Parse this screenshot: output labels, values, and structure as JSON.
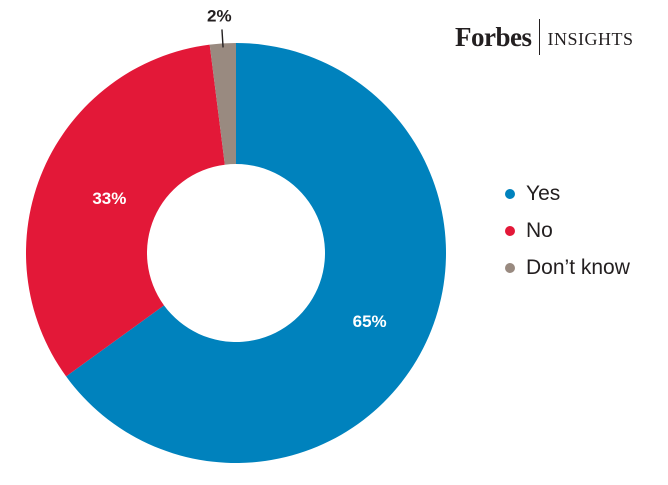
{
  "brand": {
    "name": "Forbes",
    "sub": "INSIGHTS"
  },
  "chart_data": {
    "type": "pie",
    "donut": true,
    "title": "",
    "labels": [
      "Yes",
      "No",
      "Don’t know"
    ],
    "values": [
      65,
      33,
      2
    ],
    "value_labels": [
      "65%",
      "33%",
      "2%"
    ],
    "colors": [
      "#0082bd",
      "#e31838",
      "#998a80"
    ],
    "legend": "right"
  }
}
